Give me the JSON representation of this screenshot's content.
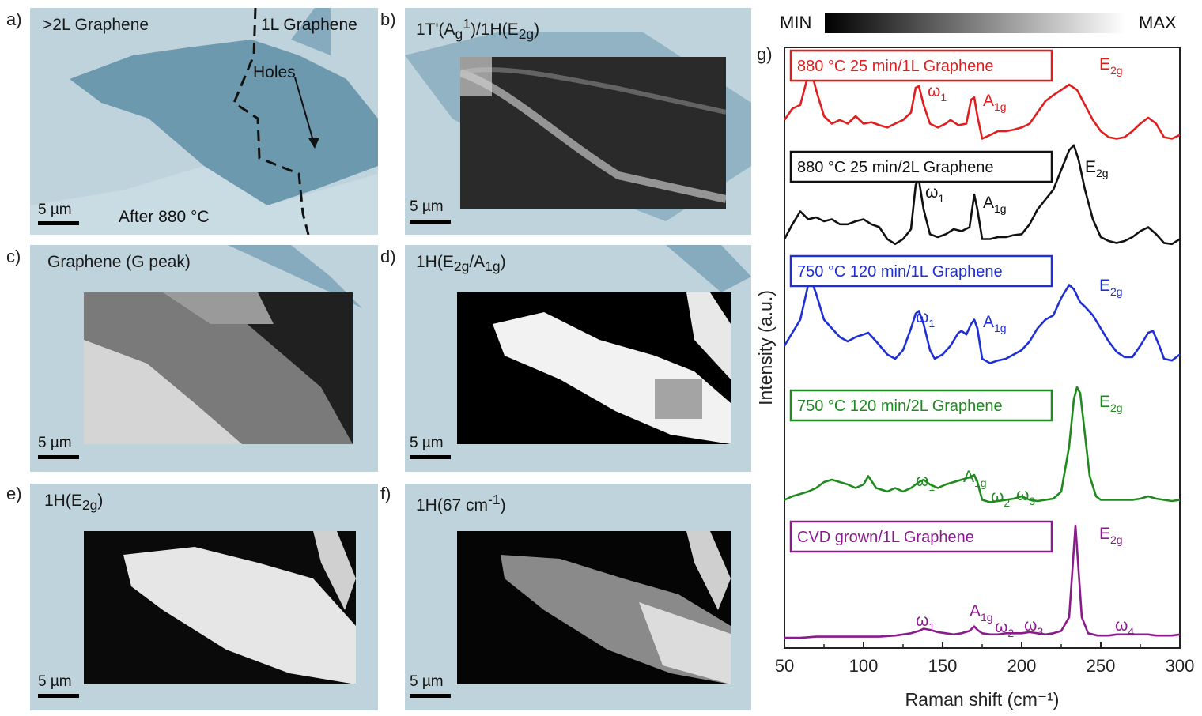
{
  "panels": [
    {
      "letter": "a)",
      "title": ">2L Graphene",
      "scale": "5 µm",
      "extra_title": "1L Graphene",
      "holes": "Holes",
      "after": "After 880 °C"
    },
    {
      "letter": "b)",
      "title_html": "1T'(A<sub>g</sub><sup>1</sup>)/1H(E<sub>2g</sub>)",
      "scale": "5 µm"
    },
    {
      "letter": "c)",
      "title": "Graphene (G peak)",
      "scale": "5 µm"
    },
    {
      "letter": "d)",
      "title_html": "1H(E<sub>2g</sub>/A<sub>1g</sub>)",
      "scale": "5 µm"
    },
    {
      "letter": "e)",
      "title_html": "1H(E<sub>2g</sub>)",
      "scale": "5 µm"
    },
    {
      "letter": "f)",
      "title_html": "1H(67 cm<sup>-1</sup>)",
      "scale": "5 µm"
    }
  ],
  "colorbar": {
    "min": "MIN",
    "max": "MAX"
  },
  "colors": {
    "red": "#e01e1e",
    "black": "#111111",
    "blue": "#1f2fd6",
    "green": "#1f8a1f",
    "purple": "#8a1a8e"
  },
  "chart_data": {
    "type": "line",
    "panel_letter": "g)",
    "xlabel": "Raman shift (cm⁻¹)",
    "ylabel": "Intensity (a.u.)",
    "xlim": [
      50,
      300
    ],
    "xticks": [
      50,
      100,
      150,
      200,
      250,
      300
    ],
    "series": [
      {
        "name": "880 °C 25 min/1L Graphene",
        "color": "#e01e1e",
        "points": [
          [
            50,
            0.35
          ],
          [
            55,
            0.5
          ],
          [
            60,
            0.55
          ],
          [
            65,
            0.95
          ],
          [
            67,
            1.0
          ],
          [
            70,
            0.75
          ],
          [
            75,
            0.4
          ],
          [
            80,
            0.3
          ],
          [
            85,
            0.35
          ],
          [
            90,
            0.3
          ],
          [
            95,
            0.4
          ],
          [
            100,
            0.3
          ],
          [
            105,
            0.32
          ],
          [
            110,
            0.28
          ],
          [
            115,
            0.25
          ],
          [
            120,
            0.3
          ],
          [
            125,
            0.35
          ],
          [
            130,
            0.45
          ],
          [
            133,
            0.78
          ],
          [
            135,
            0.8
          ],
          [
            138,
            0.55
          ],
          [
            142,
            0.3
          ],
          [
            147,
            0.25
          ],
          [
            152,
            0.3
          ],
          [
            155,
            0.35
          ],
          [
            160,
            0.28
          ],
          [
            165,
            0.3
          ],
          [
            168,
            0.62
          ],
          [
            170,
            0.65
          ],
          [
            172,
            0.4
          ],
          [
            175,
            0.1
          ],
          [
            180,
            0.15
          ],
          [
            185,
            0.2
          ],
          [
            190,
            0.2
          ],
          [
            195,
            0.22
          ],
          [
            200,
            0.25
          ],
          [
            205,
            0.3
          ],
          [
            210,
            0.45
          ],
          [
            215,
            0.6
          ],
          [
            220,
            0.68
          ],
          [
            225,
            0.75
          ],
          [
            230,
            0.82
          ],
          [
            235,
            0.75
          ],
          [
            240,
            0.55
          ],
          [
            245,
            0.35
          ],
          [
            250,
            0.2
          ],
          [
            255,
            0.12
          ],
          [
            260,
            0.1
          ],
          [
            265,
            0.12
          ],
          [
            270,
            0.2
          ],
          [
            275,
            0.3
          ],
          [
            280,
            0.38
          ],
          [
            285,
            0.3
          ],
          [
            290,
            0.12
          ],
          [
            295,
            0.1
          ],
          [
            300,
            0.15
          ]
        ]
      },
      {
        "name": "880 °C 25 min/2L Graphene",
        "color": "#111111",
        "points": [
          [
            50,
            0.1
          ],
          [
            55,
            0.25
          ],
          [
            60,
            0.38
          ],
          [
            65,
            0.3
          ],
          [
            70,
            0.32
          ],
          [
            75,
            0.28
          ],
          [
            80,
            0.3
          ],
          [
            85,
            0.25
          ],
          [
            90,
            0.25
          ],
          [
            95,
            0.28
          ],
          [
            100,
            0.3
          ],
          [
            105,
            0.25
          ],
          [
            110,
            0.22
          ],
          [
            115,
            0.1
          ],
          [
            120,
            0.05
          ],
          [
            125,
            0.1
          ],
          [
            130,
            0.2
          ],
          [
            133,
            0.65
          ],
          [
            135,
            0.7
          ],
          [
            138,
            0.4
          ],
          [
            142,
            0.15
          ],
          [
            147,
            0.12
          ],
          [
            152,
            0.15
          ],
          [
            157,
            0.2
          ],
          [
            162,
            0.18
          ],
          [
            167,
            0.22
          ],
          [
            170,
            0.55
          ],
          [
            172,
            0.4
          ],
          [
            175,
            0.1
          ],
          [
            180,
            0.1
          ],
          [
            185,
            0.12
          ],
          [
            190,
            0.12
          ],
          [
            195,
            0.14
          ],
          [
            200,
            0.15
          ],
          [
            205,
            0.25
          ],
          [
            210,
            0.4
          ],
          [
            215,
            0.5
          ],
          [
            220,
            0.6
          ],
          [
            225,
            0.8
          ],
          [
            230,
            1.0
          ],
          [
            233,
            1.05
          ],
          [
            236,
            0.9
          ],
          [
            240,
            0.6
          ],
          [
            245,
            0.3
          ],
          [
            250,
            0.12
          ],
          [
            255,
            0.08
          ],
          [
            260,
            0.06
          ],
          [
            265,
            0.08
          ],
          [
            270,
            0.12
          ],
          [
            275,
            0.18
          ],
          [
            280,
            0.22
          ],
          [
            285,
            0.15
          ],
          [
            290,
            0.06
          ],
          [
            295,
            0.05
          ],
          [
            300,
            0.1
          ]
        ]
      },
      {
        "name": "750 °C 120 min/1L Graphene",
        "color": "#1f2fd6",
        "points": [
          [
            50,
            0.25
          ],
          [
            55,
            0.4
          ],
          [
            60,
            0.55
          ],
          [
            65,
            0.95
          ],
          [
            67,
            1.0
          ],
          [
            70,
            0.85
          ],
          [
            75,
            0.55
          ],
          [
            80,
            0.45
          ],
          [
            85,
            0.35
          ],
          [
            90,
            0.3
          ],
          [
            95,
            0.35
          ],
          [
            100,
            0.38
          ],
          [
            103,
            0.4
          ],
          [
            108,
            0.3
          ],
          [
            115,
            0.15
          ],
          [
            120,
            0.1
          ],
          [
            125,
            0.2
          ],
          [
            130,
            0.45
          ],
          [
            133,
            0.62
          ],
          [
            135,
            0.65
          ],
          [
            138,
            0.5
          ],
          [
            142,
            0.2
          ],
          [
            145,
            0.1
          ],
          [
            150,
            0.15
          ],
          [
            155,
            0.25
          ],
          [
            160,
            0.4
          ],
          [
            162,
            0.42
          ],
          [
            165,
            0.38
          ],
          [
            168,
            0.5
          ],
          [
            170,
            0.55
          ],
          [
            172,
            0.45
          ],
          [
            175,
            0.1
          ],
          [
            180,
            0.05
          ],
          [
            185,
            0.08
          ],
          [
            190,
            0.1
          ],
          [
            195,
            0.15
          ],
          [
            200,
            0.2
          ],
          [
            205,
            0.3
          ],
          [
            210,
            0.45
          ],
          [
            215,
            0.55
          ],
          [
            220,
            0.6
          ],
          [
            225,
            0.8
          ],
          [
            230,
            0.95
          ],
          [
            233,
            0.9
          ],
          [
            237,
            0.75
          ],
          [
            240,
            0.7
          ],
          [
            245,
            0.6
          ],
          [
            250,
            0.45
          ],
          [
            255,
            0.3
          ],
          [
            260,
            0.18
          ],
          [
            265,
            0.12
          ],
          [
            270,
            0.12
          ],
          [
            275,
            0.25
          ],
          [
            280,
            0.4
          ],
          [
            283,
            0.42
          ],
          [
            287,
            0.25
          ],
          [
            290,
            0.1
          ],
          [
            295,
            0.08
          ],
          [
            300,
            0.15
          ]
        ]
      },
      {
        "name": "750 °C 120 min/2L Graphene",
        "color": "#1f8a1f",
        "points": [
          [
            50,
            0.05
          ],
          [
            55,
            0.08
          ],
          [
            60,
            0.1
          ],
          [
            65,
            0.12
          ],
          [
            70,
            0.15
          ],
          [
            75,
            0.2
          ],
          [
            80,
            0.22
          ],
          [
            85,
            0.2
          ],
          [
            90,
            0.18
          ],
          [
            95,
            0.15
          ],
          [
            100,
            0.18
          ],
          [
            103,
            0.25
          ],
          [
            108,
            0.15
          ],
          [
            115,
            0.12
          ],
          [
            120,
            0.15
          ],
          [
            125,
            0.12
          ],
          [
            130,
            0.15
          ],
          [
            135,
            0.2
          ],
          [
            138,
            0.22
          ],
          [
            142,
            0.18
          ],
          [
            147,
            0.15
          ],
          [
            152,
            0.18
          ],
          [
            157,
            0.2
          ],
          [
            162,
            0.22
          ],
          [
            167,
            0.24
          ],
          [
            170,
            0.26
          ],
          [
            172,
            0.2
          ],
          [
            175,
            0.05
          ],
          [
            180,
            0.03
          ],
          [
            185,
            0.04
          ],
          [
            190,
            0.05
          ],
          [
            195,
            0.06
          ],
          [
            200,
            0.08
          ],
          [
            205,
            0.05
          ],
          [
            210,
            0.04
          ],
          [
            215,
            0.05
          ],
          [
            220,
            0.06
          ],
          [
            225,
            0.12
          ],
          [
            230,
            0.5
          ],
          [
            233,
            0.9
          ],
          [
            235,
            1.0
          ],
          [
            237,
            0.95
          ],
          [
            240,
            0.6
          ],
          [
            243,
            0.25
          ],
          [
            247,
            0.08
          ],
          [
            250,
            0.05
          ],
          [
            255,
            0.05
          ],
          [
            260,
            0.05
          ],
          [
            265,
            0.05
          ],
          [
            270,
            0.05
          ],
          [
            275,
            0.06
          ],
          [
            280,
            0.08
          ],
          [
            285,
            0.06
          ],
          [
            290,
            0.05
          ],
          [
            295,
            0.04
          ],
          [
            300,
            0.05
          ]
        ]
      },
      {
        "name": "CVD grown/1L Graphene",
        "color": "#8a1a8e",
        "points": [
          [
            50,
            0.02
          ],
          [
            60,
            0.02
          ],
          [
            70,
            0.03
          ],
          [
            80,
            0.03
          ],
          [
            90,
            0.03
          ],
          [
            100,
            0.03
          ],
          [
            110,
            0.03
          ],
          [
            120,
            0.04
          ],
          [
            125,
            0.05
          ],
          [
            130,
            0.06
          ],
          [
            135,
            0.08
          ],
          [
            138,
            0.1
          ],
          [
            142,
            0.09
          ],
          [
            147,
            0.07
          ],
          [
            152,
            0.06
          ],
          [
            157,
            0.05
          ],
          [
            162,
            0.06
          ],
          [
            167,
            0.08
          ],
          [
            170,
            0.12
          ],
          [
            172,
            0.09
          ],
          [
            175,
            0.06
          ],
          [
            180,
            0.05
          ],
          [
            185,
            0.05
          ],
          [
            190,
            0.06
          ],
          [
            195,
            0.06
          ],
          [
            200,
            0.06
          ],
          [
            205,
            0.07
          ],
          [
            210,
            0.06
          ],
          [
            215,
            0.05
          ],
          [
            220,
            0.06
          ],
          [
            225,
            0.08
          ],
          [
            230,
            0.2
          ],
          [
            232,
            0.6
          ],
          [
            234,
            1.0
          ],
          [
            236,
            0.6
          ],
          [
            238,
            0.2
          ],
          [
            242,
            0.06
          ],
          [
            248,
            0.04
          ],
          [
            255,
            0.04
          ],
          [
            260,
            0.05
          ],
          [
            265,
            0.05
          ],
          [
            270,
            0.05
          ],
          [
            275,
            0.05
          ],
          [
            280,
            0.05
          ],
          [
            285,
            0.04
          ],
          [
            290,
            0.04
          ],
          [
            295,
            0.04
          ],
          [
            300,
            0.05
          ]
        ]
      }
    ]
  }
}
